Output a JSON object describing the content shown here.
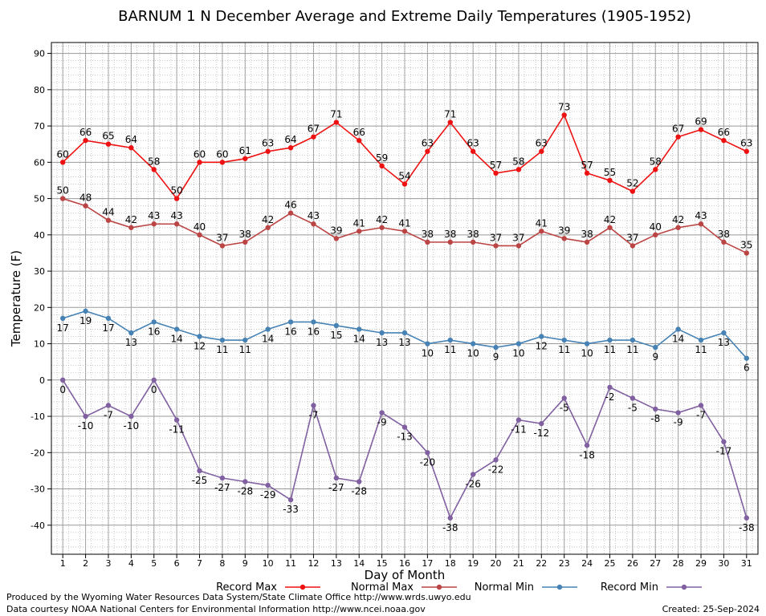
{
  "chart_data": {
    "type": "line",
    "title": "BARNUM 1 N December Average and Extreme Daily Temperatures (1905-1952)",
    "xlabel": "Day of Month",
    "ylabel": "Temperature (F)",
    "ylim": [
      -48,
      93
    ],
    "yticks": [
      -40,
      -30,
      -20,
      -10,
      0,
      10,
      20,
      30,
      40,
      50,
      60,
      70,
      80,
      90
    ],
    "grid": true,
    "x": [
      1,
      2,
      3,
      4,
      5,
      6,
      7,
      8,
      9,
      10,
      11,
      12,
      13,
      14,
      15,
      16,
      17,
      18,
      19,
      20,
      21,
      22,
      23,
      24,
      25,
      26,
      27,
      28,
      29,
      30,
      31
    ],
    "series": [
      {
        "name": "Record Max",
        "color": "#ee1111",
        "values": [
          60,
          66,
          65,
          64,
          58,
          50,
          60,
          60,
          61,
          63,
          64,
          67,
          71,
          66,
          59,
          54,
          63,
          71,
          63,
          57,
          58,
          63,
          73,
          57,
          55,
          52,
          58,
          67,
          69,
          66,
          63
        ]
      },
      {
        "name": "Normal Max",
        "color": "#bb4444",
        "values": [
          50,
          48,
          44,
          42,
          43,
          43,
          40,
          37,
          38,
          42,
          46,
          43,
          39,
          41,
          42,
          41,
          38,
          38,
          38,
          37,
          37,
          41,
          39,
          38,
          42,
          37,
          40,
          42,
          43,
          38,
          35
        ]
      },
      {
        "name": "Normal Min",
        "color": "#4682b4",
        "values": [
          17,
          19,
          17,
          13,
          16,
          14,
          12,
          11,
          11,
          14,
          16,
          16,
          15,
          14,
          13,
          13,
          10,
          11,
          10,
          9,
          10,
          12,
          11,
          10,
          11,
          11,
          9,
          14,
          11,
          13,
          6
        ]
      },
      {
        "name": "Record Min",
        "color": "#8060a0",
        "values": [
          0,
          -10,
          -7,
          -10,
          0,
          -11,
          -25,
          -27,
          -28,
          -29,
          -33,
          -7,
          -27,
          -28,
          -9,
          -13,
          -20,
          -38,
          -26,
          -22,
          -11,
          -12,
          -5,
          -18,
          -2,
          -5,
          -8,
          -9,
          -7,
          -17,
          -38
        ]
      }
    ],
    "legend_position": "bottom"
  },
  "footer": {
    "produced_by": "Produced by the Wyoming Water Resources Data System/State Climate Office http://www.wrds.uwyo.edu",
    "courtesy": "Data courtesy NOAA National Centers for Environmental Information http://www.ncei.noaa.gov",
    "created": "Created:  25-Sep-2024"
  }
}
